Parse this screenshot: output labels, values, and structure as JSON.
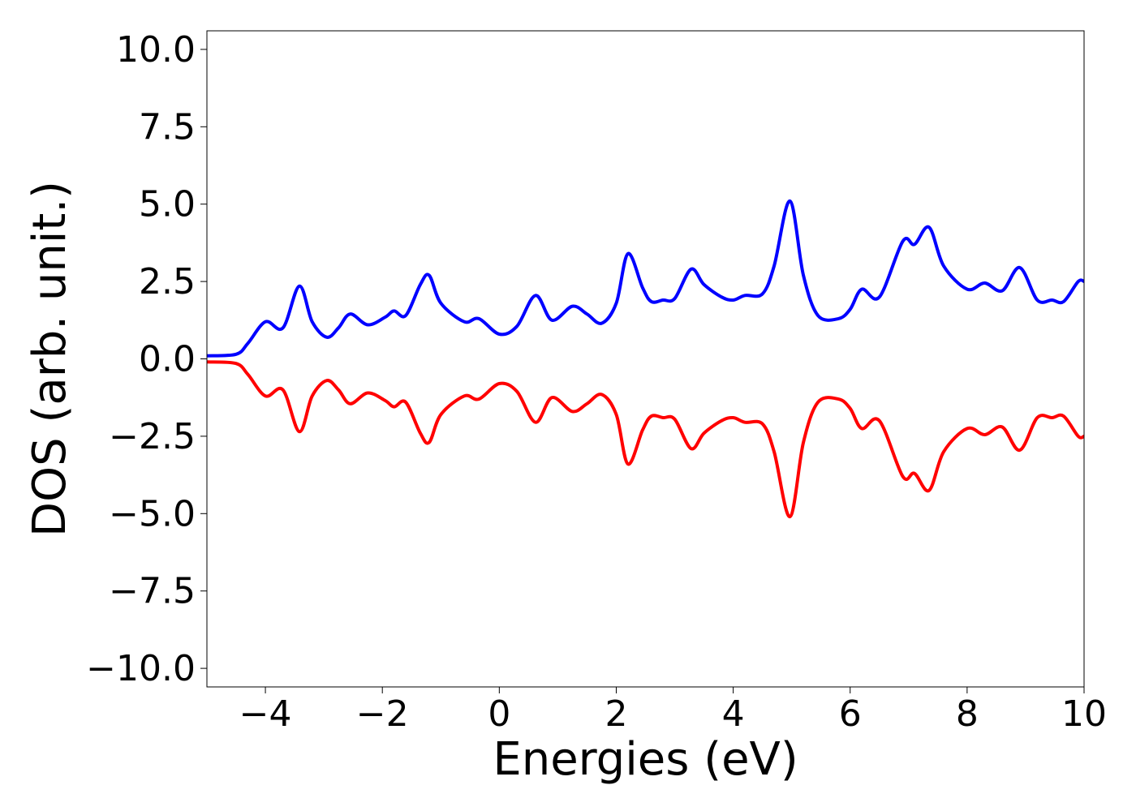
{
  "chart_data": {
    "type": "line",
    "title": "",
    "xlabel": "Energies (eV)",
    "ylabel": "DOS (arb. unit.)",
    "xlim": [
      -5,
      10
    ],
    "ylim": [
      -10.6,
      10.6
    ],
    "grid": false,
    "legend": "none",
    "xticks": [
      -4,
      -2,
      0,
      2,
      4,
      6,
      8,
      10
    ],
    "xtick_labels": [
      "−4",
      "−2",
      "0",
      "2",
      "4",
      "6",
      "8",
      "10"
    ],
    "yticks": [
      10.0,
      7.5,
      5.0,
      2.5,
      0.0,
      -2.5,
      -5.0,
      -7.5,
      -10.0
    ],
    "ytick_labels": [
      "10.0",
      "7.5",
      "5.0",
      "2.5",
      "0.0",
      "−2.5",
      "−5.0",
      "−7.5",
      "−10.0"
    ],
    "series": [
      {
        "color": "#0000ff",
        "x": [
          -5.0,
          -4.5,
          -4.3,
          -4.0,
          -3.7,
          -3.42,
          -3.2,
          -2.95,
          -2.75,
          -2.55,
          -2.25,
          -1.95,
          -1.8,
          -1.6,
          -1.35,
          -1.2,
          -1.0,
          -0.6,
          -0.35,
          0.0,
          0.3,
          0.62,
          0.9,
          1.25,
          1.5,
          1.75,
          2.0,
          2.2,
          2.45,
          2.6,
          2.8,
          3.0,
          3.28,
          3.5,
          3.8,
          4.0,
          4.2,
          4.5,
          4.7,
          4.97,
          5.2,
          5.45,
          5.8,
          6.0,
          6.2,
          6.5,
          6.9,
          7.1,
          7.35,
          7.6,
          8.0,
          8.3,
          8.6,
          8.9,
          9.2,
          9.45,
          9.65,
          9.9,
          10.0
        ],
        "y": [
          0.1,
          0.15,
          0.5,
          1.2,
          1.0,
          2.35,
          1.2,
          0.7,
          1.0,
          1.45,
          1.1,
          1.35,
          1.55,
          1.4,
          2.4,
          2.7,
          1.8,
          1.2,
          1.3,
          0.8,
          1.05,
          2.05,
          1.25,
          1.7,
          1.45,
          1.15,
          1.8,
          3.4,
          2.3,
          1.85,
          1.9,
          1.95,
          2.9,
          2.4,
          2.0,
          1.9,
          2.05,
          2.1,
          3.0,
          5.1,
          2.7,
          1.4,
          1.3,
          1.6,
          2.25,
          2.0,
          3.8,
          3.7,
          4.25,
          3.0,
          2.25,
          2.45,
          2.2,
          2.95,
          1.9,
          1.9,
          1.85,
          2.5,
          2.5
        ]
      },
      {
        "color": "#ff0000",
        "x": [
          -5.0,
          -4.5,
          -4.3,
          -4.0,
          -3.7,
          -3.42,
          -3.2,
          -2.95,
          -2.75,
          -2.55,
          -2.25,
          -1.95,
          -1.8,
          -1.6,
          -1.35,
          -1.2,
          -1.0,
          -0.6,
          -0.35,
          0.0,
          0.3,
          0.62,
          0.9,
          1.25,
          1.5,
          1.75,
          2.0,
          2.2,
          2.45,
          2.6,
          2.8,
          3.0,
          3.28,
          3.5,
          3.8,
          4.0,
          4.2,
          4.5,
          4.7,
          4.97,
          5.2,
          5.45,
          5.8,
          6.0,
          6.2,
          6.5,
          6.9,
          7.1,
          7.35,
          7.6,
          8.0,
          8.3,
          8.6,
          8.9,
          9.2,
          9.45,
          9.65,
          9.9,
          10.0
        ],
        "y": [
          -0.1,
          -0.15,
          -0.5,
          -1.2,
          -1.0,
          -2.35,
          -1.2,
          -0.7,
          -1.0,
          -1.45,
          -1.1,
          -1.35,
          -1.55,
          -1.4,
          -2.4,
          -2.7,
          -1.8,
          -1.2,
          -1.3,
          -0.8,
          -1.05,
          -2.05,
          -1.25,
          -1.7,
          -1.45,
          -1.15,
          -1.8,
          -3.4,
          -2.3,
          -1.85,
          -1.9,
          -1.95,
          -2.9,
          -2.4,
          -2.0,
          -1.9,
          -2.05,
          -2.1,
          -3.0,
          -5.1,
          -2.7,
          -1.4,
          -1.3,
          -1.6,
          -2.25,
          -2.0,
          -3.8,
          -3.7,
          -4.25,
          -3.0,
          -2.25,
          -2.45,
          -2.2,
          -2.95,
          -1.9,
          -1.9,
          -1.85,
          -2.5,
          -2.5
        ]
      }
    ]
  }
}
